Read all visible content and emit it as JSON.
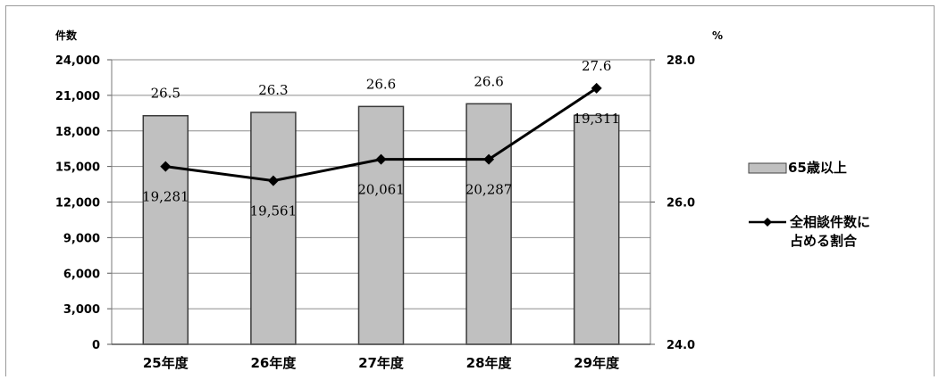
{
  "chart_data": {
    "type": "bar",
    "categories": [
      "25年度",
      "26年度",
      "27年度",
      "28年度",
      "29年度"
    ],
    "series": [
      {
        "name": "65歳以上",
        "type": "bar",
        "axis": "left",
        "values": [
          19281,
          19561,
          20061,
          20287,
          19311
        ],
        "labels": [
          "19,281",
          "19,561",
          "20,061",
          "20,287",
          "19,311"
        ],
        "color": "#c0c0c0"
      },
      {
        "name": "全相談件数に占める割合",
        "type": "line",
        "axis": "right",
        "values": [
          26.5,
          26.3,
          26.6,
          26.6,
          27.6
        ],
        "labels": [
          "26.5",
          "26.3",
          "26.6",
          "26.6",
          "27.6"
        ],
        "color": "#000000"
      }
    ],
    "ylabel": "件数",
    "y2label": "%",
    "ylim": [
      0,
      24000
    ],
    "y2lim": [
      24.0,
      28.0
    ],
    "yticks": [
      "0",
      "3,000",
      "6,000",
      "9,000",
      "12,000",
      "15,000",
      "18,000",
      "21,000",
      "24,000"
    ],
    "y2ticks": [
      "24.0",
      "26.0",
      "28.0"
    ],
    "grid": true,
    "legend_position": "right"
  }
}
